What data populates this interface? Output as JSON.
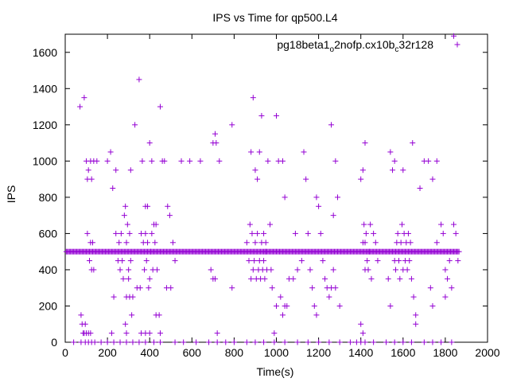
{
  "chart_data": {
    "type": "scatter",
    "title": "IPS vs Time for qp500.L4",
    "xlabel": "Time(s)",
    "ylabel": "IPS",
    "xlim": [
      0,
      2000
    ],
    "ylim": [
      0,
      1700
    ],
    "xticks": [
      0,
      200,
      400,
      600,
      800,
      1000,
      1200,
      1400,
      1600,
      1800,
      2000
    ],
    "yticks": [
      0,
      200,
      400,
      600,
      800,
      1000,
      1200,
      1400,
      1600
    ],
    "grid": false,
    "legend_position": "top-right",
    "marker": "plus",
    "color": "#9400d3",
    "series": [
      {
        "name": "pg18beta1_o2nofp.cx10b_c32r128",
        "legend": {
          "base1": "pg18beta1",
          "sub1": "o",
          "base2": "2nofp.cx10b",
          "sub2": "c",
          "base3": "32r128"
        },
        "baseline": {
          "y": 500,
          "x_from": 5,
          "x_to": 1865,
          "step": 5
        },
        "points": [
          [
            70,
            1300
          ],
          [
            90,
            1350
          ],
          [
            75,
            150
          ],
          [
            80,
            100
          ],
          [
            85,
            50
          ],
          [
            95,
            100
          ],
          [
            100,
            1000
          ],
          [
            105,
            900
          ],
          [
            110,
            950
          ],
          [
            120,
            1000
          ],
          [
            125,
            900
          ],
          [
            135,
            1000
          ],
          [
            150,
            1000
          ],
          [
            105,
            600
          ],
          [
            115,
            450
          ],
          [
            120,
            550
          ],
          [
            125,
            400
          ],
          [
            130,
            550
          ],
          [
            135,
            400
          ],
          [
            110,
            50
          ],
          [
            120,
            50
          ],
          [
            90,
            50
          ],
          [
            100,
            50
          ],
          [
            200,
            1000
          ],
          [
            215,
            1050
          ],
          [
            225,
            850
          ],
          [
            240,
            950
          ],
          [
            230,
            250
          ],
          [
            220,
            50
          ],
          [
            240,
            600
          ],
          [
            250,
            450
          ],
          [
            255,
            550
          ],
          [
            260,
            400
          ],
          [
            265,
            600
          ],
          [
            270,
            450
          ],
          [
            275,
            350
          ],
          [
            280,
            700
          ],
          [
            285,
            750
          ],
          [
            290,
            550
          ],
          [
            295,
            650
          ],
          [
            300,
            400
          ],
          [
            305,
            600
          ],
          [
            310,
            450
          ],
          [
            290,
            250
          ],
          [
            300,
            350
          ],
          [
            305,
            250
          ],
          [
            315,
            150
          ],
          [
            320,
            250
          ],
          [
            285,
            100
          ],
          [
            290,
            50
          ],
          [
            310,
            950
          ],
          [
            330,
            1200
          ],
          [
            350,
            1450
          ],
          [
            340,
            300
          ],
          [
            355,
            300
          ],
          [
            360,
            600
          ],
          [
            365,
            1000
          ],
          [
            370,
            550
          ],
          [
            375,
            400
          ],
          [
            380,
            750
          ],
          [
            385,
            450
          ],
          [
            390,
            750
          ],
          [
            395,
            300
          ],
          [
            400,
            350
          ],
          [
            405,
            500
          ],
          [
            410,
            600
          ],
          [
            415,
            400
          ],
          [
            420,
            650
          ],
          [
            425,
            550
          ],
          [
            430,
            650
          ],
          [
            435,
            400
          ],
          [
            380,
            600
          ],
          [
            390,
            550
          ],
          [
            400,
            1100
          ],
          [
            410,
            1000
          ],
          [
            430,
            150
          ],
          [
            445,
            150
          ],
          [
            450,
            1300
          ],
          [
            460,
            1000
          ],
          [
            470,
            1000
          ],
          [
            480,
            300
          ],
          [
            485,
            750
          ],
          [
            495,
            700
          ],
          [
            500,
            300
          ],
          [
            510,
            550
          ],
          [
            520,
            450
          ],
          [
            360,
            50
          ],
          [
            380,
            50
          ],
          [
            400,
            50
          ],
          [
            450,
            50
          ],
          [
            550,
            1000
          ],
          [
            590,
            1000
          ],
          [
            640,
            1000
          ],
          [
            700,
            1100
          ],
          [
            710,
            1150
          ],
          [
            715,
            1100
          ],
          [
            730,
            1000
          ],
          [
            690,
            400
          ],
          [
            700,
            350
          ],
          [
            710,
            350
          ],
          [
            720,
            50
          ],
          [
            790,
            1200
          ],
          [
            790,
            300
          ],
          [
            860,
            550
          ],
          [
            870,
            450
          ],
          [
            875,
            650
          ],
          [
            880,
            350
          ],
          [
            885,
            600
          ],
          [
            890,
            400
          ],
          [
            895,
            450
          ],
          [
            900,
            550
          ],
          [
            905,
            350
          ],
          [
            910,
            600
          ],
          [
            915,
            400
          ],
          [
            920,
            450
          ],
          [
            925,
            350
          ],
          [
            930,
            550
          ],
          [
            935,
            400
          ],
          [
            940,
            450
          ],
          [
            945,
            350
          ],
          [
            950,
            550
          ],
          [
            955,
            400
          ],
          [
            880,
            1050
          ],
          [
            890,
            1350
          ],
          [
            900,
            950
          ],
          [
            910,
            900
          ],
          [
            920,
            1050
          ],
          [
            930,
            1250
          ],
          [
            940,
            600
          ],
          [
            950,
            500
          ],
          [
            960,
            1000
          ],
          [
            970,
            650
          ],
          [
            975,
            400
          ],
          [
            980,
            300
          ],
          [
            990,
            50
          ],
          [
            1000,
            1250
          ],
          [
            1010,
            1000
          ],
          [
            1030,
            1000
          ],
          [
            1040,
            800
          ],
          [
            1000,
            200
          ],
          [
            1020,
            250
          ],
          [
            1030,
            150
          ],
          [
            1040,
            200
          ],
          [
            1050,
            200
          ],
          [
            1060,
            350
          ],
          [
            1080,
            350
          ],
          [
            1090,
            600
          ],
          [
            1100,
            400
          ],
          [
            1120,
            450
          ],
          [
            1130,
            1050
          ],
          [
            1140,
            900
          ],
          [
            1150,
            600
          ],
          [
            1160,
            400
          ],
          [
            1170,
            300
          ],
          [
            1180,
            200
          ],
          [
            1190,
            150
          ],
          [
            1190,
            800
          ],
          [
            1200,
            750
          ],
          [
            1210,
            600
          ],
          [
            1220,
            450
          ],
          [
            1230,
            350
          ],
          [
            1240,
            300
          ],
          [
            1250,
            250
          ],
          [
            1260,
            1200
          ],
          [
            1270,
            700
          ],
          [
            1280,
            1000
          ],
          [
            1290,
            800
          ],
          [
            1300,
            200
          ],
          [
            1260,
            300
          ],
          [
            1280,
            300
          ],
          [
            1270,
            400
          ],
          [
            1400,
            900
          ],
          [
            1410,
            950
          ],
          [
            1420,
            1100
          ],
          [
            1400,
            100
          ],
          [
            1410,
            50
          ],
          [
            1420,
            550
          ],
          [
            1425,
            600
          ],
          [
            1430,
            450
          ],
          [
            1435,
            400
          ],
          [
            1440,
            500
          ],
          [
            1445,
            650
          ],
          [
            1450,
            350
          ],
          [
            1460,
            600
          ],
          [
            1470,
            550
          ],
          [
            1480,
            450
          ],
          [
            1410,
            550
          ],
          [
            1415,
            650
          ],
          [
            1420,
            400
          ],
          [
            1540,
            1050
          ],
          [
            1560,
            450
          ],
          [
            1565,
            400
          ],
          [
            1570,
            550
          ],
          [
            1575,
            600
          ],
          [
            1580,
            450
          ],
          [
            1585,
            350
          ],
          [
            1590,
            550
          ],
          [
            1595,
            650
          ],
          [
            1600,
            400
          ],
          [
            1605,
            600
          ],
          [
            1610,
            450
          ],
          [
            1615,
            550
          ],
          [
            1620,
            400
          ],
          [
            1625,
            600
          ],
          [
            1630,
            450
          ],
          [
            1635,
            550
          ],
          [
            1640,
            350
          ],
          [
            1540,
            200
          ],
          [
            1530,
            350
          ],
          [
            1550,
            950
          ],
          [
            1560,
            1000
          ],
          [
            1600,
            950
          ],
          [
            1645,
            1100
          ],
          [
            1650,
            250
          ],
          [
            1660,
            150
          ],
          [
            1660,
            100
          ],
          [
            1680,
            850
          ],
          [
            1700,
            1000
          ],
          [
            1720,
            1000
          ],
          [
            1740,
            900
          ],
          [
            1760,
            1000
          ],
          [
            1730,
            300
          ],
          [
            1740,
            200
          ],
          [
            1760,
            550
          ],
          [
            1780,
            650
          ],
          [
            1790,
            600
          ],
          [
            1800,
            400
          ],
          [
            1810,
            350
          ],
          [
            1820,
            450
          ],
          [
            1840,
            1690
          ],
          [
            1840,
            650
          ],
          [
            1850,
            600
          ],
          [
            1860,
            450
          ],
          [
            1800,
            250
          ],
          [
            1830,
            300
          ]
        ],
        "ticks_on_axis": [
          [
            40,
            0
          ],
          [
            75,
            0
          ],
          [
            95,
            0
          ],
          [
            110,
            0
          ],
          [
            125,
            0
          ],
          [
            140,
            0
          ],
          [
            170,
            0
          ],
          [
            200,
            0
          ],
          [
            230,
            0
          ],
          [
            260,
            0
          ],
          [
            290,
            0
          ],
          [
            320,
            0
          ],
          [
            350,
            0
          ],
          [
            380,
            0
          ],
          [
            420,
            0
          ],
          [
            450,
            0
          ],
          [
            520,
            0
          ],
          [
            560,
            0
          ],
          [
            620,
            0
          ],
          [
            680,
            0
          ],
          [
            720,
            0
          ],
          [
            760,
            0
          ],
          [
            800,
            0
          ],
          [
            860,
            0
          ],
          [
            900,
            0
          ],
          [
            940,
            0
          ],
          [
            990,
            0
          ],
          [
            1040,
            0
          ],
          [
            1100,
            0
          ],
          [
            1150,
            0
          ],
          [
            1200,
            0
          ],
          [
            1250,
            0
          ],
          [
            1300,
            0
          ],
          [
            1350,
            0
          ],
          [
            1380,
            0
          ],
          [
            1400,
            0
          ],
          [
            1420,
            0
          ],
          [
            1460,
            0
          ],
          [
            1520,
            0
          ],
          [
            1560,
            0
          ],
          [
            1600,
            0
          ],
          [
            1640,
            0
          ],
          [
            1700,
            0
          ],
          [
            1740,
            0
          ],
          [
            1780,
            0
          ],
          [
            1830,
            0
          ]
        ]
      }
    ]
  }
}
